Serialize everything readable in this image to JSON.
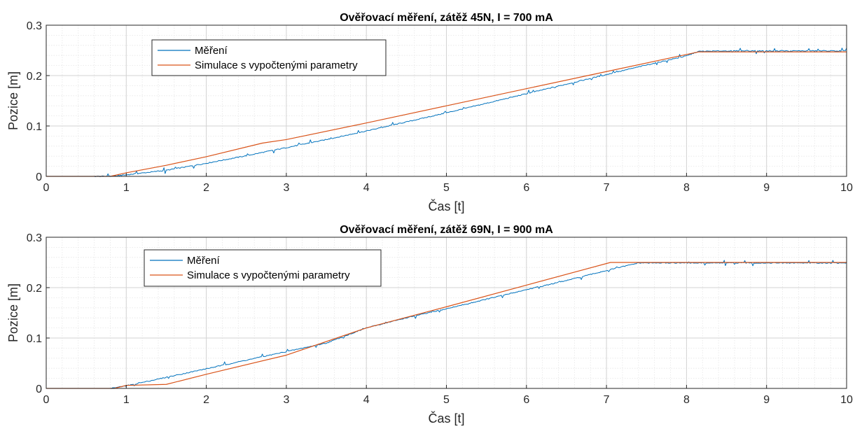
{
  "chart_data": [
    {
      "type": "line",
      "title": "Ověřovací měření, zátěž 45N, I = 700 mA",
      "xlabel": "Čas [t]",
      "ylabel": "Pozice [m]",
      "xlim": [
        0,
        10
      ],
      "ylim": [
        0,
        0.3
      ],
      "xticks": [
        "0",
        "1",
        "2",
        "3",
        "4",
        "5",
        "6",
        "7",
        "8",
        "9",
        "10"
      ],
      "yticks": [
        "0",
        "0.1",
        "0.2",
        "0.3"
      ],
      "grid": true,
      "minor_grid": true,
      "legend_position": "top-left",
      "series": [
        {
          "name": "Měření",
          "color": "#0072BD",
          "x": [
            0,
            0.6,
            0.8,
            1.0,
            1.5,
            2.0,
            2.5,
            3.0,
            3.5,
            4.0,
            4.5,
            5.0,
            5.5,
            6.0,
            6.5,
            7.0,
            7.5,
            8.0,
            8.15,
            8.5,
            9.0,
            9.5,
            10.0
          ],
          "y": [
            0,
            0,
            0,
            0.003,
            0.012,
            0.026,
            0.041,
            0.057,
            0.073,
            0.09,
            0.108,
            0.126,
            0.145,
            0.164,
            0.183,
            0.202,
            0.221,
            0.239,
            0.248,
            0.249,
            0.249,
            0.249,
            0.249
          ]
        },
        {
          "name": "Simulace s vypočtenými parametry",
          "color": "#D95319",
          "x": [
            0,
            0.8,
            1.0,
            1.5,
            2.0,
            2.7,
            3.0,
            4.0,
            5.0,
            6.0,
            7.0,
            8.15,
            10.0
          ],
          "y": [
            0,
            0,
            0.007,
            0.022,
            0.039,
            0.066,
            0.073,
            0.106,
            0.14,
            0.174,
            0.208,
            0.247,
            0.247
          ]
        }
      ]
    },
    {
      "type": "line",
      "title": "Ověřovací měření, zátěž 69N, I = 900 mA",
      "xlabel": "Čas [t]",
      "ylabel": "Pozice [m]",
      "xlim": [
        0,
        10
      ],
      "ylim": [
        0,
        0.3
      ],
      "xticks": [
        "0",
        "1",
        "2",
        "3",
        "4",
        "5",
        "6",
        "7",
        "8",
        "9",
        "10"
      ],
      "yticks": [
        "0",
        "0.1",
        "0.2",
        "0.3"
      ],
      "grid": true,
      "minor_grid": true,
      "legend_position": "top-left",
      "series": [
        {
          "name": "Měření",
          "color": "#0072BD",
          "x": [
            0,
            0.8,
            1.0,
            1.5,
            2.0,
            2.5,
            3.0,
            3.5,
            4.0,
            4.5,
            5.0,
            5.5,
            6.0,
            6.5,
            7.0,
            7.4,
            8.0,
            9.0,
            10.0
          ],
          "y": [
            0,
            0,
            0.005,
            0.022,
            0.039,
            0.056,
            0.073,
            0.09,
            0.12,
            0.14,
            0.158,
            0.177,
            0.196,
            0.214,
            0.234,
            0.249,
            0.249,
            0.249,
            0.249
          ]
        },
        {
          "name": "Simulace s vypočtenými parametry",
          "color": "#D95319",
          "x": [
            0,
            0.85,
            1.0,
            1.5,
            2.0,
            3.0,
            4.0,
            5.0,
            6.0,
            7.05,
            10.0
          ],
          "y": [
            0,
            0,
            0.006,
            0.008,
            0.028,
            0.066,
            0.12,
            0.162,
            0.205,
            0.25,
            0.25
          ]
        }
      ]
    }
  ]
}
